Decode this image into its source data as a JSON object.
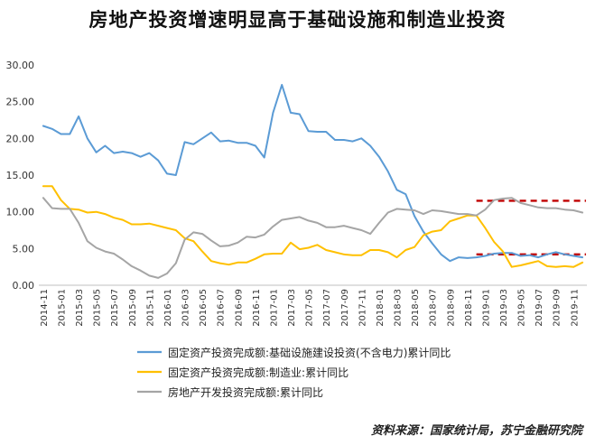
{
  "chart_data": {
    "type": "line",
    "title": "房地产投资增速明显高于基础设施和制造业投资",
    "xlabel": "",
    "ylabel": "",
    "ylim": [
      0,
      30
    ],
    "yticks": [
      "0.00",
      "5.00",
      "10.00",
      "15.00",
      "20.00",
      "25.00",
      "30.00"
    ],
    "grid": false,
    "legend_position": "bottom-left",
    "x_tick_labels": [
      "2014-11",
      "2015-01",
      "2015-03",
      "2015-05",
      "2015-07",
      "2015-09",
      "2015-11",
      "2016-01",
      "2016-03",
      "2016-05",
      "2016-07",
      "2016-09",
      "2016-11",
      "2017-01",
      "2017-03",
      "2017-05",
      "2017-07",
      "2017-09",
      "2017-11",
      "2018-01",
      "2018-03",
      "2018-05",
      "2018-07",
      "2018-09",
      "2018-11",
      "2019-01",
      "2019-03",
      "2019-05",
      "2019-07",
      "2019-09",
      "2019-11"
    ],
    "x": [
      "2014-11",
      "2014-12",
      "2015-01",
      "2015-02",
      "2015-03",
      "2015-04",
      "2015-05",
      "2015-06",
      "2015-07",
      "2015-08",
      "2015-09",
      "2015-10",
      "2015-11",
      "2015-12",
      "2016-01",
      "2016-02",
      "2016-03",
      "2016-04",
      "2016-05",
      "2016-06",
      "2016-07",
      "2016-08",
      "2016-09",
      "2016-10",
      "2016-11",
      "2016-12",
      "2017-01",
      "2017-02",
      "2017-03",
      "2017-04",
      "2017-05",
      "2017-06",
      "2017-07",
      "2017-08",
      "2017-09",
      "2017-10",
      "2017-11",
      "2017-12",
      "2018-01",
      "2018-02",
      "2018-03",
      "2018-04",
      "2018-05",
      "2018-06",
      "2018-07",
      "2018-08",
      "2018-09",
      "2018-10",
      "2018-11",
      "2018-12",
      "2019-01",
      "2019-02",
      "2019-03",
      "2019-04",
      "2019-05",
      "2019-06",
      "2019-07",
      "2019-08",
      "2019-09",
      "2019-10",
      "2019-11",
      "2019-12"
    ],
    "series": [
      {
        "name": "固定资产投资完成额:基础设施建设投资(不含电力)累计同比",
        "color": "#5B9BD5",
        "values": [
          21.7,
          21.3,
          20.6,
          20.6,
          23.0,
          20.0,
          18.1,
          19.0,
          18.0,
          18.2,
          18.0,
          17.5,
          18.0,
          17.0,
          15.2,
          15.0,
          19.5,
          19.2,
          20.0,
          20.8,
          19.6,
          19.7,
          19.4,
          19.4,
          19.0,
          17.4,
          23.5,
          27.3,
          23.5,
          23.3,
          21.0,
          20.9,
          20.9,
          19.8,
          19.8,
          19.6,
          20.0,
          19.0,
          17.5,
          15.5,
          13.0,
          12.4,
          9.4,
          7.3,
          5.7,
          4.2,
          3.3,
          3.8,
          3.7,
          3.8,
          4.0,
          4.3,
          4.4,
          4.4,
          4.0,
          4.1,
          3.8,
          4.2,
          4.5,
          4.2,
          4.0,
          3.8
        ]
      },
      {
        "name": "固定资产投资完成额:制造业:累计同比",
        "color": "#FFC000",
        "values": [
          13.5,
          13.5,
          11.6,
          10.4,
          10.3,
          9.9,
          10.0,
          9.7,
          9.2,
          8.9,
          8.3,
          8.3,
          8.4,
          8.1,
          7.8,
          7.5,
          6.4,
          6.0,
          4.6,
          3.3,
          3.0,
          2.8,
          3.1,
          3.1,
          3.6,
          4.2,
          4.3,
          4.3,
          5.8,
          4.9,
          5.1,
          5.5,
          4.8,
          4.5,
          4.2,
          4.1,
          4.1,
          4.8,
          4.8,
          4.5,
          3.8,
          4.8,
          5.2,
          6.8,
          7.3,
          7.5,
          8.7,
          9.1,
          9.5,
          9.5,
          7.8,
          5.9,
          4.6,
          2.5,
          2.7,
          3.0,
          3.3,
          2.6,
          2.5,
          2.6,
          2.5,
          3.1
        ]
      },
      {
        "name": "房地产开发投资完成额:累计同比",
        "color": "#A5A5A5",
        "values": [
          11.9,
          10.5,
          10.4,
          10.4,
          8.5,
          6.0,
          5.1,
          4.6,
          4.3,
          3.5,
          2.6,
          2.0,
          1.3,
          1.0,
          1.6,
          3.0,
          6.2,
          7.2,
          7.0,
          6.1,
          5.3,
          5.4,
          5.8,
          6.6,
          6.5,
          6.9,
          8.0,
          8.9,
          9.1,
          9.3,
          8.8,
          8.5,
          7.9,
          7.9,
          8.1,
          7.8,
          7.5,
          7.0,
          8.5,
          9.9,
          10.4,
          10.3,
          10.2,
          9.7,
          10.2,
          10.1,
          9.9,
          9.7,
          9.7,
          9.5,
          10.3,
          11.6,
          11.8,
          11.9,
          11.2,
          10.9,
          10.6,
          10.5,
          10.5,
          10.3,
          10.2,
          9.9
        ]
      }
    ],
    "annotations": [
      {
        "type": "dashed-line",
        "color": "#C00000",
        "value": 11.5,
        "from": "2018-12",
        "to": "2019-12"
      },
      {
        "type": "dashed-line",
        "color": "#C00000",
        "value": 4.2,
        "from": "2018-12",
        "to": "2019-12"
      }
    ],
    "source_note": "资料来源：国家统计局，苏宁金融研究院"
  }
}
